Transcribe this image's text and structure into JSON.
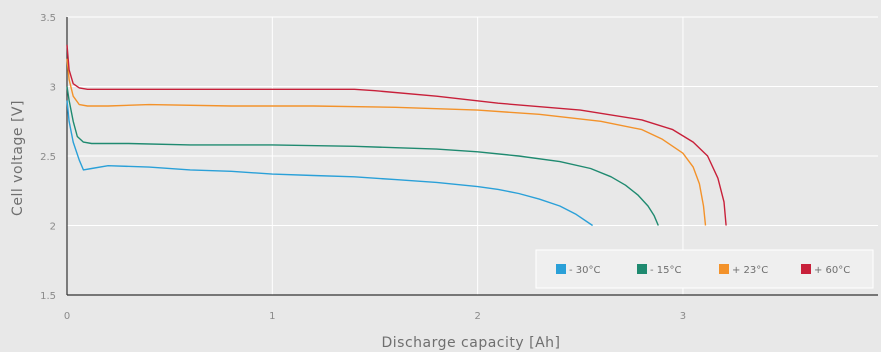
{
  "chart_data": {
    "type": "line",
    "title": "",
    "xlabel": "Discharge capacity [Ah]",
    "ylabel": "Cell voltage [V]",
    "xlim": [
      0,
      3.95
    ],
    "ylim": [
      1.5,
      3.5
    ],
    "xticks": [
      0,
      1,
      2,
      3
    ],
    "xtick_labels": [
      "0",
      "1",
      "2",
      "3"
    ],
    "yticks": [
      1.5,
      2,
      2.5,
      3,
      3.5
    ],
    "ytick_labels": [
      "1.5",
      "2",
      "2.5",
      "3",
      "3.5"
    ],
    "grid": true,
    "legend_position": "bottom-right",
    "series": [
      {
        "name": "- 30°C",
        "color": "#2aa0d8",
        "x": [
          0,
          0.01,
          0.03,
          0.06,
          0.08,
          0.12,
          0.2,
          0.4,
          0.6,
          0.8,
          1.0,
          1.2,
          1.4,
          1.6,
          1.8,
          2.0,
          2.1,
          2.2,
          2.3,
          2.4,
          2.48,
          2.56
        ],
        "y": [
          2.9,
          2.75,
          2.6,
          2.47,
          2.4,
          2.41,
          2.43,
          2.42,
          2.4,
          2.39,
          2.37,
          2.36,
          2.35,
          2.33,
          2.31,
          2.28,
          2.26,
          2.23,
          2.19,
          2.14,
          2.08,
          2.0
        ]
      },
      {
        "name": "- 15°C",
        "color": "#1f8a70",
        "x": [
          0,
          0.01,
          0.03,
          0.05,
          0.08,
          0.12,
          0.3,
          0.6,
          1.0,
          1.4,
          1.6,
          1.8,
          2.0,
          2.2,
          2.4,
          2.55,
          2.65,
          2.72,
          2.78,
          2.83,
          2.86,
          2.88
        ],
        "y": [
          3.0,
          2.9,
          2.75,
          2.64,
          2.6,
          2.59,
          2.59,
          2.58,
          2.58,
          2.57,
          2.56,
          2.55,
          2.53,
          2.5,
          2.46,
          2.41,
          2.35,
          2.29,
          2.22,
          2.14,
          2.07,
          2.0
        ]
      },
      {
        "name": "+ 23°C",
        "color": "#f3922a",
        "x": [
          0,
          0.01,
          0.03,
          0.06,
          0.1,
          0.2,
          0.4,
          0.8,
          1.2,
          1.6,
          2.0,
          2.3,
          2.6,
          2.8,
          2.9,
          3.0,
          3.05,
          3.08,
          3.1,
          3.11
        ],
        "y": [
          3.2,
          3.05,
          2.93,
          2.87,
          2.86,
          2.86,
          2.87,
          2.86,
          2.86,
          2.85,
          2.83,
          2.8,
          2.75,
          2.69,
          2.62,
          2.52,
          2.42,
          2.3,
          2.14,
          2.0
        ]
      },
      {
        "name": "+ 60°C",
        "color": "#c8203a",
        "x": [
          0,
          0.01,
          0.03,
          0.06,
          0.1,
          0.2,
          0.5,
          1.0,
          1.4,
          1.5,
          1.8,
          2.1,
          2.5,
          2.8,
          2.95,
          3.05,
          3.12,
          3.17,
          3.2,
          3.21
        ],
        "y": [
          3.3,
          3.12,
          3.02,
          2.99,
          2.98,
          2.98,
          2.98,
          2.98,
          2.98,
          2.97,
          2.93,
          2.88,
          2.83,
          2.76,
          2.69,
          2.6,
          2.5,
          2.34,
          2.17,
          2.0
        ]
      }
    ]
  }
}
